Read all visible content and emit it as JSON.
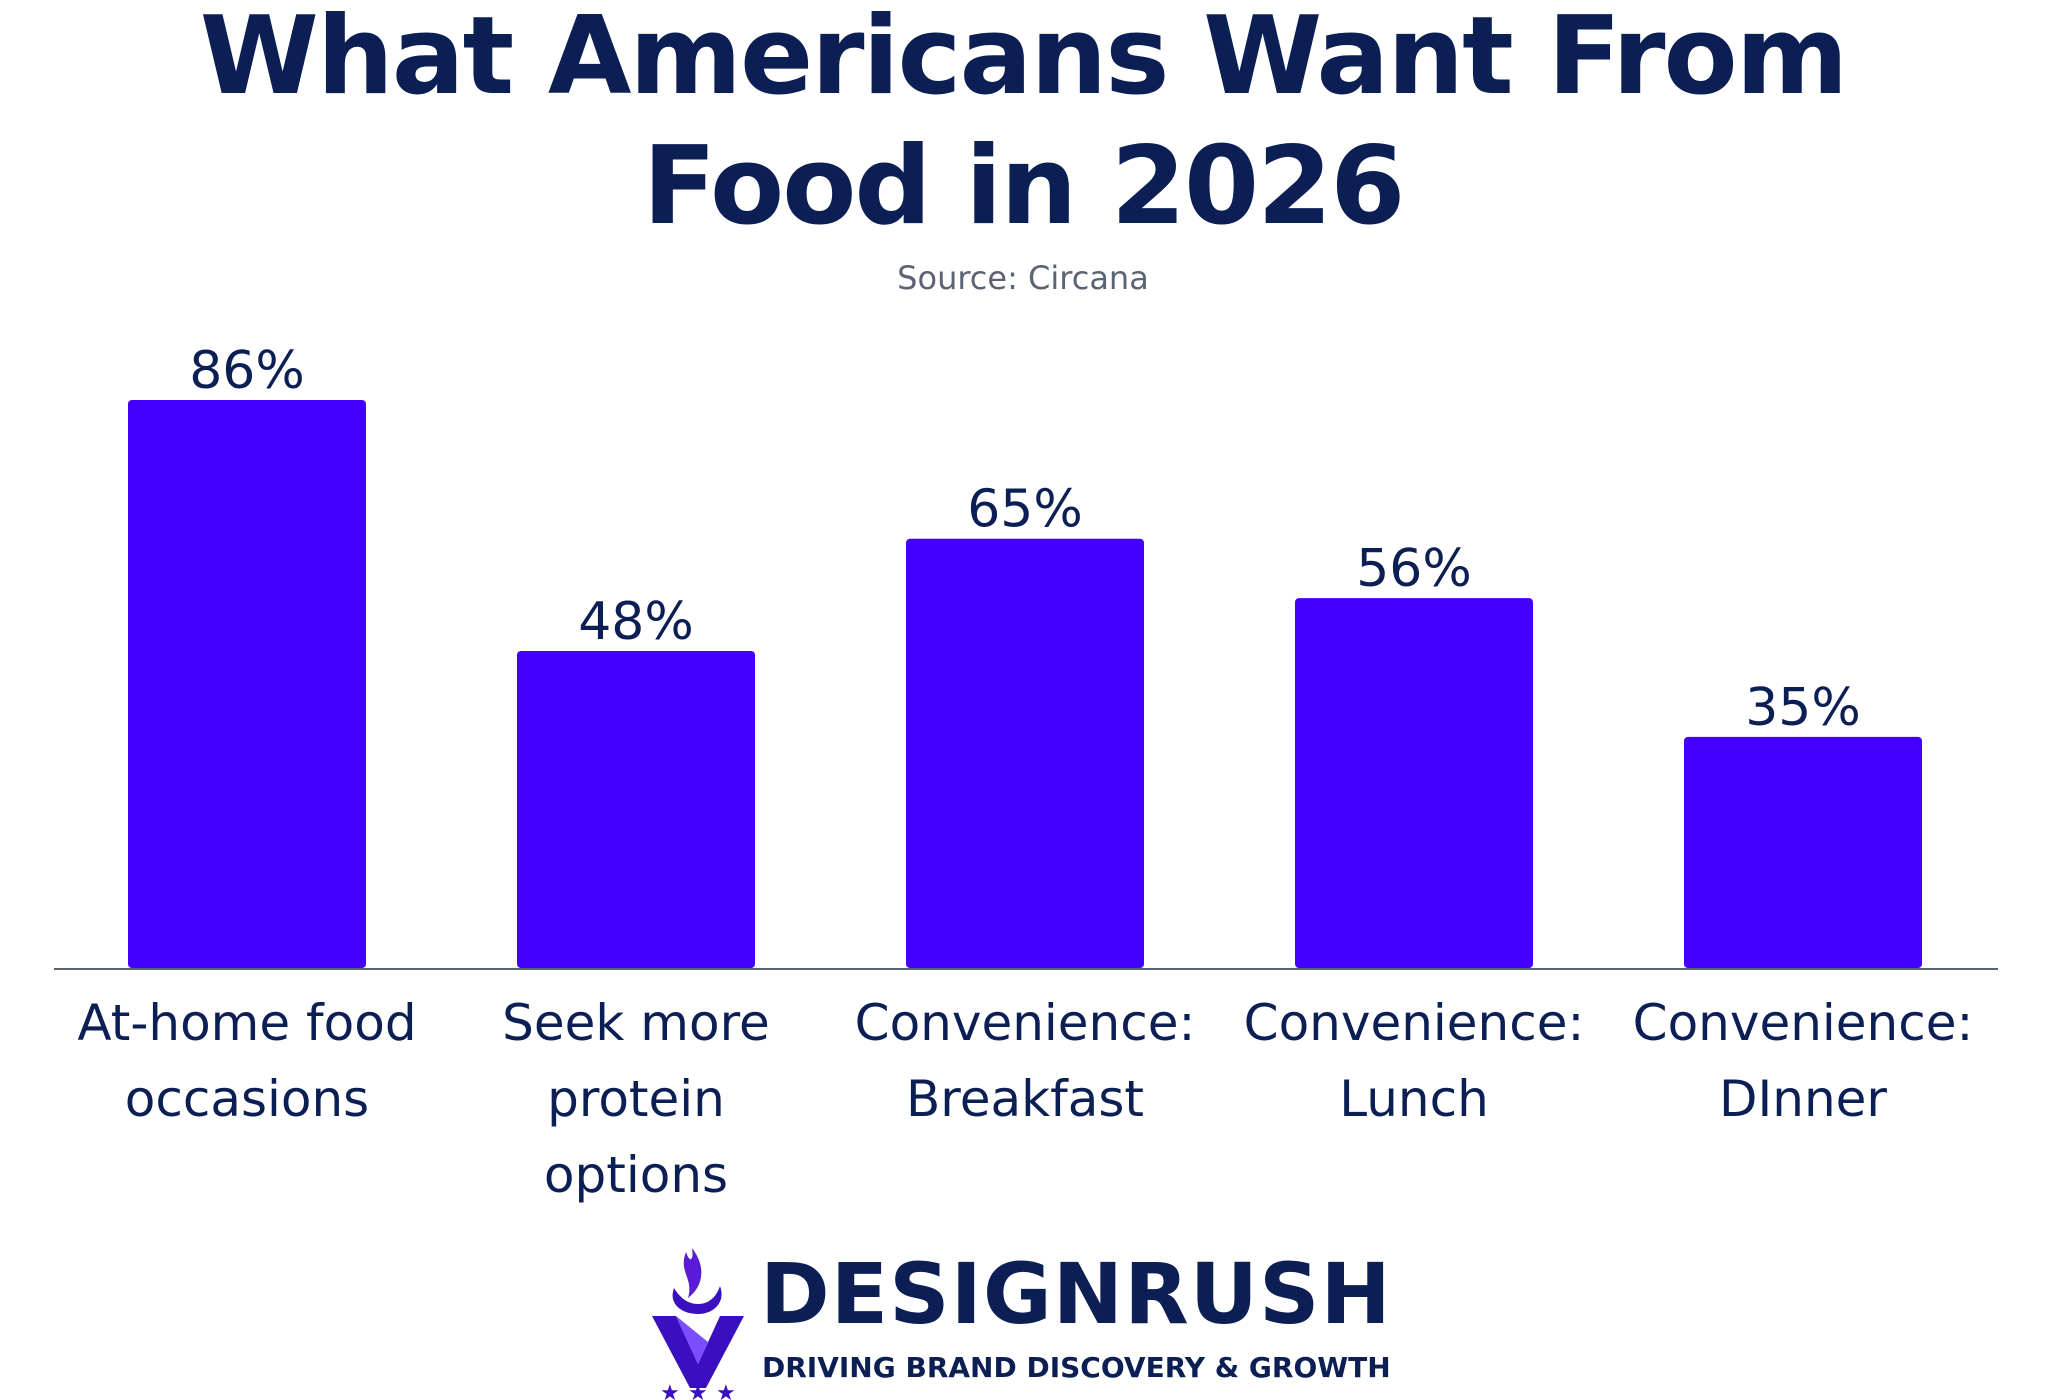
{
  "chart_data": {
    "type": "bar",
    "title_lines": [
      "What Americans Want From",
      "Food in 2026"
    ],
    "subtitle": "Source: Circana",
    "categories": [
      [
        "At-home food",
        "occasions"
      ],
      [
        "Seek more",
        "protein",
        "options"
      ],
      [
        "Convenience:",
        "Breakfast"
      ],
      [
        "Convenience:",
        "Lunch"
      ],
      [
        "Convenience:",
        "DInner"
      ]
    ],
    "values": [
      86,
      48,
      65,
      56,
      35
    ],
    "value_labels": [
      "86%",
      "48%",
      "65%",
      "56%",
      "35%"
    ],
    "unit": "%",
    "ylim": [
      0,
      86
    ],
    "grid": false,
    "legend": "none",
    "colors": {
      "bar": "#4400ff",
      "text": "#0c1f55",
      "subtitle": "#5b6473",
      "axis": "#5b6473"
    }
  },
  "brand": {
    "name": "DESIGNRUSH",
    "tagline": "DRIVING BRAND DISCOVERY & GROWTH",
    "logo_icon": "flame-v-stars-icon"
  }
}
